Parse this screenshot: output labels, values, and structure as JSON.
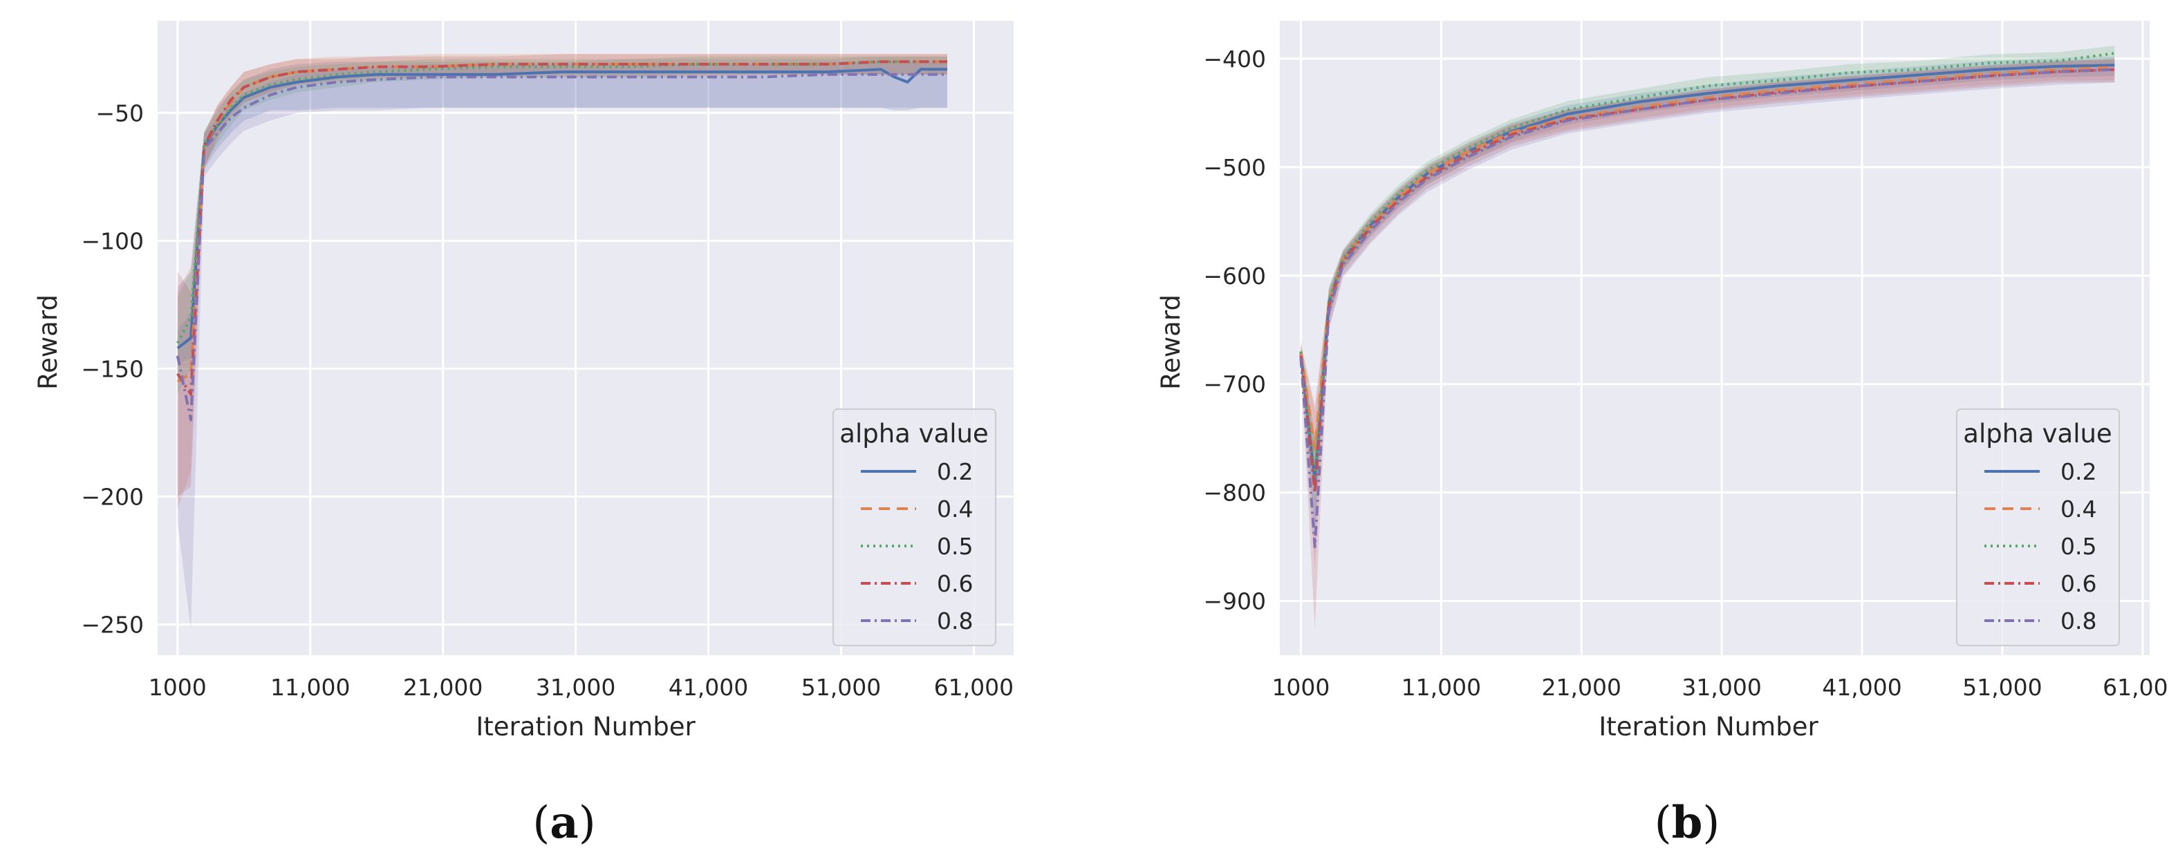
{
  "chart_data": [
    {
      "type": "line",
      "panel": "a",
      "caption_open": "(",
      "caption_letter": "a",
      "caption_close": ")",
      "xlabel": "Iteration Number",
      "ylabel": "Reward",
      "xlim": [
        -500,
        64000
      ],
      "ylim": [
        -262,
        -14
      ],
      "xticks": [
        1000,
        11000,
        21000,
        31000,
        41000,
        51000,
        61000
      ],
      "xtick_labels": [
        "1000",
        "11,000",
        "21,000",
        "31,000",
        "41,000",
        "51,000",
        "61,000"
      ],
      "yticks": [
        -250,
        -200,
        -150,
        -100,
        -50
      ],
      "ytick_labels": [
        "−250",
        "−200",
        "−150",
        "−100",
        "−50"
      ],
      "grid": true,
      "legend": {
        "title": "alpha value",
        "location": "lower-right",
        "entries": [
          "0.2",
          "0.4",
          "0.5",
          "0.6",
          "0.8"
        ]
      },
      "x": [
        1000,
        2000,
        3000,
        4000,
        5000,
        6000,
        8000,
        10000,
        13000,
        16000,
        20000,
        25000,
        30000,
        35000,
        40000,
        45000,
        50000,
        54000,
        55000,
        56000,
        57000,
        58000,
        59000
      ],
      "series": [
        {
          "name": "0.2",
          "color": "#4c72b0",
          "dash": "",
          "band_color": "#4c72b0",
          "values": [
            -142,
            -138,
            -63,
            -55,
            -49,
            -44,
            -40,
            -38,
            -36,
            -35,
            -35,
            -35,
            -34,
            -34,
            -34,
            -34,
            -34,
            -33,
            -36,
            -38,
            -33,
            -33,
            -33
          ],
          "band_lower": [
            -148,
            -146,
            -72,
            -64,
            -58,
            -53,
            -49,
            -49,
            -48,
            -48,
            -48,
            -48,
            -48,
            -48,
            -48,
            -48,
            -48,
            -48,
            -49,
            -49,
            -48,
            -48,
            -48
          ],
          "band_upper": [
            -135,
            -128,
            -58,
            -48,
            -42,
            -37,
            -33,
            -31,
            -30,
            -30,
            -30,
            -30,
            -30,
            -29,
            -29,
            -29,
            -29,
            -28,
            -28,
            -28,
            -28,
            -28,
            -28
          ]
        },
        {
          "name": "0.4",
          "color": "#dd8452",
          "dash": "16,10",
          "band_color": "#dd8452",
          "values": [
            -155,
            -152,
            -63,
            -54,
            -46,
            -40,
            -36,
            -34,
            -33,
            -32,
            -32,
            -31,
            -31,
            -31,
            -31,
            -31,
            -31,
            -30,
            -30,
            -30,
            -30,
            -30,
            -30
          ],
          "band_lower": [
            -205,
            -190,
            -72,
            -60,
            -52,
            -46,
            -42,
            -39,
            -38,
            -37,
            -36,
            -36,
            -36,
            -36,
            -36,
            -35,
            -35,
            -35,
            -35,
            -35,
            -35,
            -35,
            -35
          ],
          "band_upper": [
            -120,
            -110,
            -58,
            -47,
            -40,
            -34,
            -31,
            -29,
            -28,
            -28,
            -27,
            -27,
            -27,
            -27,
            -27,
            -27,
            -27,
            -27,
            -27,
            -27,
            -27,
            -27,
            -27
          ]
        },
        {
          "name": "0.5",
          "color": "#55a868",
          "dash": "3,6",
          "band_color": "#55a868",
          "values": [
            -140,
            -130,
            -62,
            -55,
            -48,
            -43,
            -39,
            -37,
            -35,
            -34,
            -33,
            -32,
            -32,
            -32,
            -31,
            -31,
            -31,
            -30,
            -30,
            -30,
            -30,
            -30,
            -30
          ],
          "band_lower": [
            -160,
            -150,
            -70,
            -62,
            -55,
            -49,
            -45,
            -42,
            -40,
            -38,
            -37,
            -36,
            -36,
            -36,
            -35,
            -35,
            -35,
            -35,
            -35,
            -35,
            -35,
            -35,
            -35
          ],
          "band_upper": [
            -122,
            -112,
            -57,
            -49,
            -42,
            -37,
            -34,
            -32,
            -31,
            -30,
            -29,
            -29,
            -29,
            -29,
            -28,
            -28,
            -28,
            -28,
            -28,
            -28,
            -28,
            -28,
            -28
          ]
        },
        {
          "name": "0.6",
          "color": "#c44e52",
          "dash": "14,6,3,6",
          "band_color": "#c44e52",
          "values": [
            -152,
            -160,
            -63,
            -53,
            -45,
            -40,
            -36,
            -34,
            -33,
            -32,
            -32,
            -31,
            -31,
            -31,
            -31,
            -31,
            -31,
            -30,
            -30,
            -30,
            -30,
            -30,
            -30
          ],
          "band_lower": [
            -200,
            -196,
            -72,
            -60,
            -51,
            -46,
            -42,
            -39,
            -37,
            -36,
            -36,
            -35,
            -35,
            -35,
            -35,
            -35,
            -35,
            -35,
            -35,
            -35,
            -35,
            -35,
            -35
          ],
          "band_upper": [
            -112,
            -120,
            -58,
            -47,
            -40,
            -34,
            -31,
            -29,
            -29,
            -28,
            -28,
            -28,
            -27,
            -27,
            -27,
            -27,
            -27,
            -27,
            -27,
            -27,
            -27,
            -27,
            -27
          ]
        },
        {
          "name": "0.8",
          "color": "#8172b3",
          "dash": "14,6,3,6",
          "band_color": "#8172b3",
          "values": [
            -145,
            -170,
            -64,
            -58,
            -52,
            -48,
            -43,
            -40,
            -38,
            -37,
            -36,
            -36,
            -36,
            -36,
            -36,
            -36,
            -35,
            -35,
            -35,
            -35,
            -35,
            -35,
            -35
          ],
          "band_lower": [
            -210,
            -252,
            -75,
            -68,
            -62,
            -57,
            -53,
            -50,
            -49,
            -49,
            -48,
            -48,
            -48,
            -48,
            -48,
            -48,
            -48,
            -48,
            -48,
            -48,
            -48,
            -48,
            -48
          ],
          "band_upper": [
            -118,
            -112,
            -58,
            -52,
            -46,
            -42,
            -38,
            -35,
            -33,
            -32,
            -31,
            -31,
            -31,
            -31,
            -31,
            -31,
            -30,
            -30,
            -30,
            -30,
            -30,
            -30,
            -30
          ]
        }
      ]
    },
    {
      "type": "line",
      "panel": "b",
      "caption_open": "(",
      "caption_letter": "b",
      "caption_close": ")",
      "xlabel": "Iteration Number",
      "ylabel": "Reward",
      "xlim": [
        -500,
        61500
      ],
      "ylim": [
        -950,
        -365
      ],
      "xticks": [
        1000,
        11000,
        21000,
        31000,
        41000,
        51000,
        61000
      ],
      "xtick_labels": [
        "1000",
        "11,000",
        "21,000",
        "31,000",
        "41,000",
        "51,000",
        "61,000"
      ],
      "yticks": [
        -900,
        -800,
        -700,
        -600,
        -500,
        -400
      ],
      "ytick_labels": [
        "−900",
        "−800",
        "−700",
        "−600",
        "−500",
        "−400"
      ],
      "grid": true,
      "legend": {
        "title": "alpha value",
        "location": "lower-right",
        "entries": [
          "0.2",
          "0.4",
          "0.5",
          "0.6",
          "0.8"
        ]
      },
      "x": [
        1000,
        2000,
        3000,
        4000,
        6000,
        8000,
        10000,
        13000,
        16000,
        20000,
        25000,
        30000,
        35000,
        40000,
        45000,
        50000,
        55000,
        59000
      ],
      "series": [
        {
          "name": "0.2",
          "color": "#4c72b0",
          "dash": "",
          "band_color": "#4c72b0",
          "values": [
            -672,
            -790,
            -625,
            -585,
            -553,
            -527,
            -506,
            -485,
            -467,
            -451,
            -440,
            -432,
            -425,
            -420,
            -415,
            -410,
            -407,
            -406
          ],
          "band_lower": [
            -680,
            -840,
            -640,
            -595,
            -563,
            -537,
            -516,
            -495,
            -477,
            -461,
            -450,
            -442,
            -435,
            -430,
            -425,
            -420,
            -417,
            -416
          ],
          "band_upper": [
            -664,
            -750,
            -612,
            -577,
            -545,
            -519,
            -498,
            -477,
            -459,
            -443,
            -432,
            -424,
            -417,
            -412,
            -407,
            -402,
            -399,
            -398
          ]
        },
        {
          "name": "0.4",
          "color": "#dd8452",
          "dash": "16,10",
          "band_color": "#dd8452",
          "values": [
            -670,
            -760,
            -625,
            -585,
            -553,
            -527,
            -506,
            -485,
            -468,
            -455,
            -445,
            -436,
            -429,
            -424,
            -419,
            -414,
            -410,
            -408
          ],
          "band_lower": [
            -678,
            -800,
            -640,
            -595,
            -563,
            -537,
            -516,
            -495,
            -478,
            -465,
            -455,
            -446,
            -439,
            -434,
            -429,
            -424,
            -420,
            -420
          ],
          "band_upper": [
            -660,
            -725,
            -612,
            -577,
            -545,
            -519,
            -498,
            -477,
            -460,
            -447,
            -437,
            -428,
            -421,
            -416,
            -411,
            -406,
            -402,
            -399
          ]
        },
        {
          "name": "0.5",
          "color": "#55a868",
          "dash": "3,6",
          "band_color": "#55a868",
          "values": [
            -670,
            -785,
            -623,
            -584,
            -550,
            -524,
            -503,
            -482,
            -464,
            -447,
            -436,
            -425,
            -420,
            -413,
            -410,
            -404,
            -402,
            -395
          ],
          "band_lower": [
            -678,
            -820,
            -638,
            -594,
            -560,
            -534,
            -513,
            -492,
            -474,
            -457,
            -446,
            -435,
            -430,
            -423,
            -420,
            -414,
            -412,
            -405
          ],
          "band_upper": [
            -662,
            -755,
            -610,
            -576,
            -542,
            -516,
            -495,
            -474,
            -456,
            -439,
            -428,
            -417,
            -412,
            -405,
            -402,
            -396,
            -394,
            -388
          ]
        },
        {
          "name": "0.6",
          "color": "#c44e52",
          "dash": "14,6,3,6",
          "band_color": "#c44e52",
          "values": [
            -674,
            -800,
            -628,
            -587,
            -555,
            -530,
            -509,
            -488,
            -470,
            -456,
            -447,
            -438,
            -431,
            -426,
            -421,
            -416,
            -412,
            -410
          ],
          "band_lower": [
            -684,
            -925,
            -648,
            -600,
            -568,
            -542,
            -520,
            -499,
            -481,
            -467,
            -457,
            -448,
            -441,
            -436,
            -431,
            -426,
            -422,
            -422
          ],
          "band_upper": [
            -664,
            -720,
            -614,
            -578,
            -546,
            -521,
            -500,
            -479,
            -461,
            -447,
            -438,
            -429,
            -422,
            -417,
            -412,
            -407,
            -403,
            -401
          ]
        },
        {
          "name": "0.8",
          "color": "#8172b3",
          "dash": "14,6,3,6",
          "band_color": "#8172b3",
          "values": [
            -676,
            -850,
            -632,
            -590,
            -558,
            -532,
            -511,
            -490,
            -472,
            -457,
            -447,
            -438,
            -432,
            -426,
            -421,
            -416,
            -412,
            -410
          ],
          "band_lower": [
            -686,
            -870,
            -650,
            -602,
            -570,
            -544,
            -523,
            -502,
            -484,
            -469,
            -459,
            -450,
            -444,
            -438,
            -433,
            -428,
            -424,
            -422
          ],
          "band_upper": [
            -666,
            -810,
            -618,
            -580,
            -548,
            -522,
            -501,
            -480,
            -462,
            -447,
            -437,
            -428,
            -422,
            -416,
            -411,
            -406,
            -402,
            -400
          ]
        }
      ]
    }
  ]
}
